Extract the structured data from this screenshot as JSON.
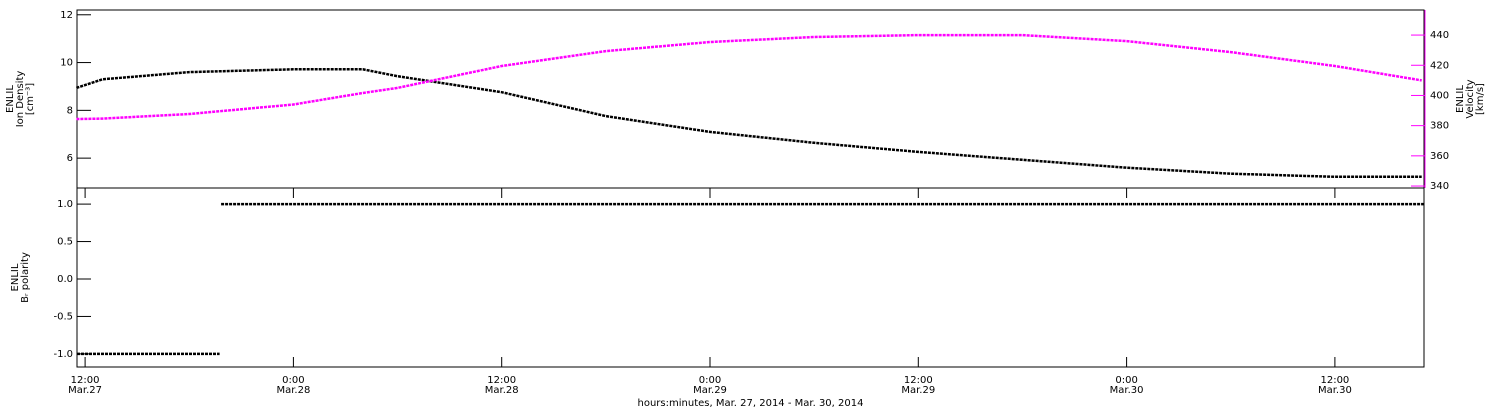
{
  "chart_data": [
    {
      "type": "line",
      "y_label": [
        "ENLIL",
        "Ion Density",
        "[cm⁻³]"
      ],
      "y2_label": [
        "ENLIL",
        "Velocity",
        "[km/s]"
      ],
      "x": [
        "2014-03-27T11:30",
        "2014-03-27T13:00",
        "2014-03-27T18:00",
        "2014-03-28T00:00",
        "2014-03-28T04:00",
        "2014-03-28T06:00",
        "2014-03-28T12:00",
        "2014-03-28T18:00",
        "2014-03-29T00:00",
        "2014-03-29T06:00",
        "2014-03-29T12:00",
        "2014-03-29T18:00",
        "2014-03-30T00:00",
        "2014-03-30T06:00",
        "2014-03-30T12:00",
        "2014-03-30T17:00"
      ],
      "series": [
        {
          "color": "#000000",
          "values": [
            8.94,
            9.3,
            9.6,
            9.72,
            9.72,
            9.43,
            8.76,
            7.76,
            7.1,
            6.64,
            6.26,
            5.93,
            5.6,
            5.35,
            5.22,
            5.22
          ]
        },
        {
          "color": "#ff00ff",
          "axis": "y2",
          "values": [
            384.4,
            384.7,
            387.7,
            394,
            401.6,
            405,
            419.5,
            429.4,
            435.4,
            438.7,
            440,
            440,
            436,
            428.7,
            419.5,
            410
          ]
        }
      ],
      "xlim": [
        "2014-03-27T11:32",
        "2014-03-30T17:08"
      ],
      "ylim": [
        4.75,
        12.2
      ],
      "yticks": [
        6,
        8,
        10,
        12
      ],
      "y2lim": [
        338.7,
        456.6
      ],
      "y2ticks": [
        340,
        360,
        380,
        400,
        420,
        440
      ],
      "y2color": "#ff00ff"
    },
    {
      "type": "line",
      "y_label": [
        "ENLIL",
        "Bᵣ polarity"
      ],
      "x_label": "hours:minutes, Mar. 27, 2014 - Mar. 30, 2014",
      "x": [
        "2014-03-27T11:32",
        "2014-03-27T19:45",
        "2014-03-27T19:48",
        "2014-03-27T19:50",
        "2014-03-30T17:08"
      ],
      "series": [
        {
          "color": "#000000",
          "values": [
            -1,
            -1,
            null,
            1,
            1
          ]
        }
      ],
      "xlim": [
        "2014-03-27T11:32",
        "2014-03-30T17:08"
      ],
      "xticks": [
        {
          "value": "2014-03-27T12:00",
          "label": [
            "12:00",
            "Mar.27"
          ]
        },
        {
          "value": "2014-03-28T00:00",
          "label": [
            "0:00",
            "Mar.28"
          ]
        },
        {
          "value": "2014-03-28T12:00",
          "label": [
            "12:00",
            "Mar.28"
          ]
        },
        {
          "value": "2014-03-29T00:00",
          "label": [
            "0:00",
            "Mar.29"
          ]
        },
        {
          "value": "2014-03-29T12:00",
          "label": [
            "12:00",
            "Mar.29"
          ]
        },
        {
          "value": "2014-03-30T00:00",
          "label": [
            "0:00",
            "Mar.30"
          ]
        },
        {
          "value": "2014-03-30T12:00",
          "label": [
            "12:00",
            "Mar.30"
          ]
        }
      ],
      "ylim": [
        -1.175,
        1.215
      ],
      "yticks": [
        {
          "value": -1,
          "label": "-1.0"
        },
        -0.5,
        {
          "value": 0,
          "label": "0.0"
        },
        0.5,
        {
          "value": 1,
          "label": "1.0"
        }
      ]
    }
  ]
}
